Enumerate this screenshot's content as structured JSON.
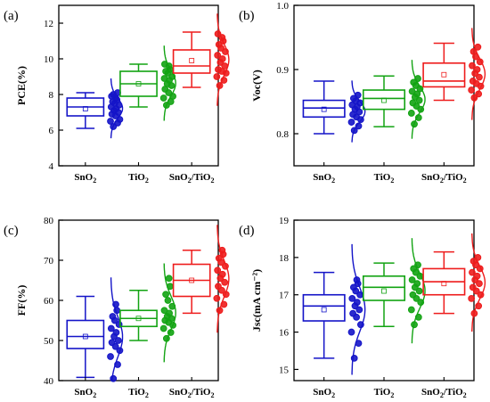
{
  "figure_title": "",
  "colors": {
    "SnO2": "#1414c8",
    "TiO2": "#12a312",
    "SnO2/TiO2": "#ee1c1c"
  },
  "chart_data": [
    {
      "panel": "(a)",
      "type": "box",
      "ylabel": "PCE(%)",
      "ylim": [
        4,
        13
      ],
      "yticks": [
        "4",
        "6",
        "8",
        "10",
        "12"
      ],
      "ytick_values": [
        4,
        6,
        8,
        10,
        12
      ],
      "categories": [
        "SnO2",
        "TiO2",
        "SnO2/TiO2"
      ],
      "series": [
        {
          "category": "SnO2",
          "box": {
            "whisker_low": 6.1,
            "q1": 6.8,
            "median": 7.3,
            "q3": 7.8,
            "whisker_high": 8.1,
            "mean": 7.2
          },
          "points": [
            6.2,
            6.4,
            6.5,
            6.6,
            6.8,
            6.9,
            7.0,
            7.1,
            7.2,
            7.3,
            7.4,
            7.5,
            7.6,
            7.7,
            7.8,
            7.9,
            8.0,
            8.1
          ]
        },
        {
          "category": "TiO2",
          "box": {
            "whisker_low": 7.3,
            "q1": 7.9,
            "median": 8.6,
            "q3": 9.3,
            "whisker_high": 9.7,
            "mean": 8.6
          },
          "points": [
            7.4,
            7.6,
            7.8,
            7.9,
            8.1,
            8.3,
            8.5,
            8.6,
            8.8,
            8.9,
            9.0,
            9.2,
            9.3,
            9.4,
            9.6,
            9.7
          ]
        },
        {
          "category": "SnO2/TiO2",
          "box": {
            "whisker_low": 8.4,
            "q1": 9.2,
            "median": 9.6,
            "q3": 10.5,
            "whisker_high": 11.5,
            "mean": 9.9
          },
          "points": [
            8.5,
            8.8,
            9.0,
            9.2,
            9.3,
            9.4,
            9.6,
            9.8,
            10.0,
            10.2,
            10.4,
            10.6,
            10.8,
            11.0,
            11.2,
            11.4
          ]
        }
      ]
    },
    {
      "panel": "(b)",
      "type": "box",
      "ylabel": "Voc(V)",
      "ylim": [
        0.75,
        1.0
      ],
      "yticks": [
        "0.8",
        "0.9",
        "1.0"
      ],
      "ytick_values": [
        0.8,
        0.9,
        1.0
      ],
      "categories": [
        "SnO2",
        "TiO2",
        "SnO2/TiO2"
      ],
      "series": [
        {
          "category": "SnO2",
          "box": {
            "whisker_low": 0.8,
            "q1": 0.826,
            "median": 0.84,
            "q3": 0.852,
            "whisker_high": 0.882,
            "mean": 0.838
          },
          "points": [
            0.805,
            0.812,
            0.818,
            0.822,
            0.826,
            0.83,
            0.834,
            0.838,
            0.842,
            0.845,
            0.848,
            0.851,
            0.855,
            0.86
          ]
        },
        {
          "category": "TiO2",
          "box": {
            "whisker_low": 0.811,
            "q1": 0.838,
            "median": 0.855,
            "q3": 0.868,
            "whisker_high": 0.89,
            "mean": 0.852
          },
          "points": [
            0.815,
            0.825,
            0.832,
            0.838,
            0.843,
            0.848,
            0.852,
            0.857,
            0.862,
            0.866,
            0.87,
            0.875,
            0.88,
            0.886
          ]
        },
        {
          "category": "SnO2/TiO2",
          "box": {
            "whisker_low": 0.852,
            "q1": 0.873,
            "median": 0.882,
            "q3": 0.91,
            "whisker_high": 0.941,
            "mean": 0.892
          },
          "points": [
            0.856,
            0.862,
            0.868,
            0.874,
            0.878,
            0.882,
            0.888,
            0.894,
            0.9,
            0.906,
            0.912,
            0.92,
            0.928,
            0.935
          ]
        }
      ]
    },
    {
      "panel": "(c)",
      "type": "box",
      "ylabel": "FF(%)",
      "ylim": [
        40,
        80
      ],
      "yticks": [
        "40",
        "50",
        "60",
        "70",
        "80"
      ],
      "ytick_values": [
        40,
        50,
        60,
        70,
        80
      ],
      "categories": [
        "SnO2",
        "TiO2",
        "SnO2/TiO2"
      ],
      "series": [
        {
          "category": "SnO2",
          "box": {
            "whisker_low": 40.8,
            "q1": 48.0,
            "median": 51.0,
            "q3": 55.0,
            "whisker_high": 61.0,
            "mean": 51.0
          },
          "points": [
            40.5,
            44.0,
            46.0,
            47.5,
            48.5,
            49.5,
            50.0,
            51.0,
            52.0,
            53.0,
            54.0,
            55.0,
            56.0,
            57.5,
            59.0
          ]
        },
        {
          "category": "TiO2",
          "box": {
            "whisker_low": 50.0,
            "q1": 53.5,
            "median": 55.5,
            "q3": 57.5,
            "whisker_high": 62.5,
            "mean": 55.5
          },
          "points": [
            50.5,
            52.0,
            53.0,
            53.8,
            54.5,
            55.0,
            55.5,
            56.0,
            56.8,
            57.5,
            58.5,
            60.0,
            61.5,
            63.5,
            65.5
          ]
        },
        {
          "category": "SnO2/TiO2",
          "box": {
            "whisker_low": 56.8,
            "q1": 61.0,
            "median": 65.0,
            "q3": 69.0,
            "whisker_high": 72.5,
            "mean": 65.0
          },
          "points": [
            57.5,
            59.0,
            60.5,
            61.5,
            62.5,
            63.5,
            64.5,
            65.5,
            66.5,
            67.5,
            68.5,
            69.5,
            70.5,
            71.5,
            72.5
          ]
        }
      ]
    },
    {
      "panel": "(d)",
      "type": "box",
      "ylabel": "Jsc(mA cm⁻²)",
      "ylim": [
        14.7,
        19
      ],
      "yticks": [
        "15",
        "16",
        "17",
        "18",
        "19"
      ],
      "ytick_values": [
        15,
        16,
        17,
        18,
        19
      ],
      "categories": [
        "SnO2",
        "TiO2",
        "SnO2/TiO2"
      ],
      "series": [
        {
          "category": "SnO2",
          "box": {
            "whisker_low": 15.3,
            "q1": 16.3,
            "median": 16.7,
            "q3": 17.0,
            "whisker_high": 17.6,
            "mean": 16.6
          },
          "points": [
            15.3,
            15.7,
            16.0,
            16.2,
            16.4,
            16.5,
            16.6,
            16.7,
            16.8,
            16.9,
            17.0,
            17.1,
            17.2,
            17.3,
            17.4
          ]
        },
        {
          "category": "TiO2",
          "box": {
            "whisker_low": 16.15,
            "q1": 16.85,
            "median": 17.2,
            "q3": 17.5,
            "whisker_high": 17.85,
            "mean": 17.1
          },
          "points": [
            16.2,
            16.4,
            16.6,
            16.8,
            16.9,
            17.0,
            17.1,
            17.2,
            17.3,
            17.4,
            17.5,
            17.6,
            17.7,
            17.8
          ]
        },
        {
          "category": "SnO2/TiO2",
          "box": {
            "whisker_low": 16.5,
            "q1": 17.0,
            "median": 17.35,
            "q3": 17.7,
            "whisker_high": 18.15,
            "mean": 17.3
          },
          "points": [
            16.5,
            16.7,
            16.9,
            17.0,
            17.1,
            17.2,
            17.3,
            17.4,
            17.5,
            17.6,
            17.7,
            17.8,
            17.9,
            18.0
          ]
        }
      ]
    }
  ]
}
